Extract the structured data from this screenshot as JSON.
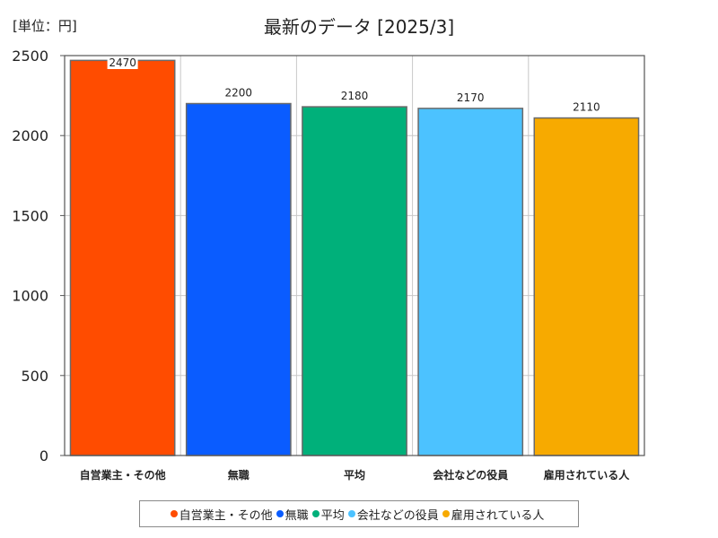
{
  "chart_data": {
    "type": "bar",
    "title": "最新のデータ [2025/3]",
    "unit_label": "[単位：円]",
    "xlabel": "",
    "ylabel": "",
    "ylim": [
      0,
      2500
    ],
    "yticks": [
      0,
      500,
      1000,
      1500,
      2000,
      2500
    ],
    "grid": true,
    "categories": [
      "自営業主・その他",
      "無職",
      "平均",
      "会社などの役員",
      "雇用されている人"
    ],
    "values": [
      2470,
      2200,
      2180,
      2170,
      2110
    ],
    "colors": [
      "#ff4c00",
      "#0a5cff",
      "#00b07a",
      "#4cc2ff",
      "#f7aa00"
    ],
    "legend": {
      "position": "bottom",
      "entries": [
        "自営業主・その他",
        "無職",
        "平均",
        "会社などの役員",
        "雇用されている人"
      ]
    }
  }
}
